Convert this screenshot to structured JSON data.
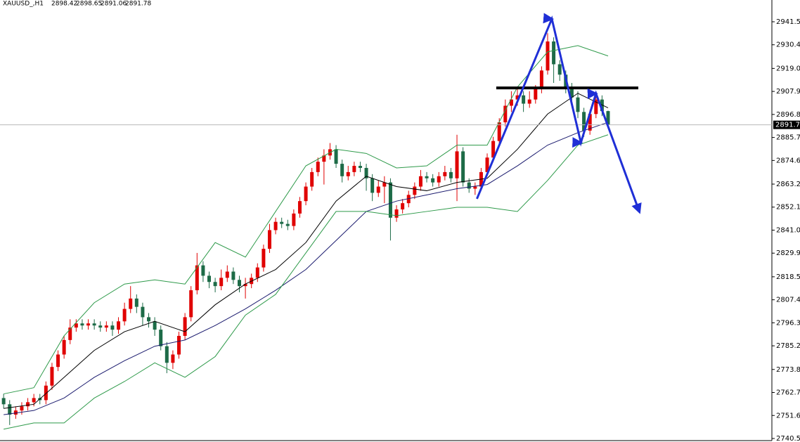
{
  "chart_data": {
    "type": "candlestick",
    "symbol": "XAUUSD_,H1",
    "ohlc": [
      2898.42,
      2898.65,
      2891.06,
      2891.78
    ],
    "last_price": 2891.78,
    "xlim": [
      -0.6,
      127.1
    ],
    "ylim": [
      2740.5,
      2952.0
    ],
    "yticks": [
      {
        "value": 2941.5,
        "label": "2941.50"
      },
      {
        "value": 2930.4,
        "label": "2930.40"
      },
      {
        "value": 2919.0,
        "label": "2919.00"
      },
      {
        "value": 2907.9,
        "label": "2907.90"
      },
      {
        "value": 2896.8,
        "label": "2896.80"
      },
      {
        "value": 2885.7,
        "label": "2885.70"
      },
      {
        "value": 2874.6,
        "label": "2874.60"
      },
      {
        "value": 2863.2,
        "label": "2863.20"
      },
      {
        "value": 2852.1,
        "label": "2852.10"
      },
      {
        "value": 2841.0,
        "label": "2841.00"
      },
      {
        "value": 2829.9,
        "label": "2829.90"
      },
      {
        "value": 2818.5,
        "label": "2818.50"
      },
      {
        "value": 2807.4,
        "label": "2807.40"
      },
      {
        "value": 2796.3,
        "label": "2796.30"
      },
      {
        "value": 2785.2,
        "label": "2785.20"
      },
      {
        "value": 2773.8,
        "label": "2773.80"
      },
      {
        "value": 2762.7,
        "label": "2762.70"
      },
      {
        "value": 2751.6,
        "label": "2751.60"
      },
      {
        "value": 2740.5,
        "label": "2740.50"
      }
    ],
    "up_color": "#e00000",
    "down_color": "#1d6b47",
    "open": [
      2760,
      2757,
      2752,
      2754,
      2756,
      2758,
      2760,
      2759,
      2766,
      2775,
      2781,
      2788,
      2794,
      2796,
      2795,
      2796,
      2795,
      2794,
      2795,
      2793,
      2797,
      2803,
      2808,
      2804,
      2799,
      2797,
      2793,
      2785,
      2777,
      2781,
      2790,
      2799,
      2812,
      2824,
      2819,
      2816,
      2814,
      2818,
      2821,
      2817,
      2814,
      2815,
      2818,
      2823,
      2832,
      2841,
      2845,
      2844,
      2843,
      2849,
      2855,
      2862,
      2869,
      2874,
      2877,
      2880,
      2873,
      2867,
      2869,
      2872,
      2871,
      2866,
      2859,
      2862,
      2864,
      2847,
      2851,
      2854,
      2858,
      2862,
      2867,
      2866,
      2864,
      2867,
      2869,
      2866,
      2879,
      2864,
      2861,
      2862,
      2869,
      2876,
      2884,
      2893,
      2901,
      2904,
      2906,
      2902,
      2904,
      2909,
      2918,
      2932,
      2921,
      2916,
      2910,
      2905,
      2898,
      2889,
      2897,
      2904,
      2898.42
    ],
    "high": [
      2762,
      2759,
      2756,
      2758,
      2760,
      2762,
      2762,
      2768,
      2777,
      2783,
      2790,
      2798,
      2798,
      2798,
      2798,
      2798,
      2797,
      2797,
      2797,
      2799,
      2806,
      2814,
      2810,
      2806,
      2801,
      2799,
      2795,
      2787,
      2783,
      2792,
      2801,
      2814,
      2830,
      2826,
      2821,
      2818,
      2822,
      2824,
      2823,
      2819,
      2818,
      2820,
      2825,
      2834,
      2844,
      2847,
      2847,
      2846,
      2851,
      2857,
      2864,
      2871,
      2876,
      2880,
      2883,
      2882,
      2875,
      2872,
      2874,
      2874,
      2873,
      2868,
      2865,
      2867,
      2866,
      2853,
      2856,
      2860,
      2864,
      2870,
      2869,
      2868,
      2869,
      2872,
      2871,
      2887,
      2881,
      2866,
      2864,
      2871,
      2878,
      2886,
      2895,
      2904,
      2908,
      2910,
      2908,
      2908,
      2911,
      2920,
      2936,
      2934,
      2923,
      2918,
      2912,
      2908,
      2900,
      2899,
      2906,
      2906,
      2898.65
    ],
    "low": [
      2755,
      2747,
      2750,
      2752,
      2754,
      2756,
      2757,
      2757,
      2764,
      2773,
      2779,
      2786,
      2792,
      2793,
      2793,
      2793,
      2792,
      2792,
      2790,
      2791,
      2795,
      2801,
      2801,
      2795,
      2794,
      2790,
      2783,
      2772,
      2774,
      2779,
      2788,
      2797,
      2810,
      2816,
      2813,
      2811,
      2812,
      2816,
      2815,
      2811,
      2808,
      2813,
      2816,
      2821,
      2830,
      2839,
      2842,
      2841,
      2841,
      2847,
      2853,
      2860,
      2867,
      2863,
      2875,
      2871,
      2864,
      2865,
      2867,
      2869,
      2860,
      2855,
      2857,
      2854,
      2836,
      2845,
      2849,
      2852,
      2856,
      2860,
      2864,
      2862,
      2862,
      2865,
      2864,
      2855,
      2862,
      2859,
      2858,
      2860,
      2867,
      2874,
      2882,
      2891,
      2898,
      2901,
      2898,
      2900,
      2902,
      2907,
      2916,
      2912,
      2913,
      2907,
      2902,
      2895,
      2886,
      2887,
      2895,
      2896,
      2891.06
    ],
    "close": [
      2757,
      2752,
      2754,
      2756,
      2758,
      2760,
      2759,
      2766,
      2775,
      2781,
      2788,
      2794,
      2796,
      2795,
      2796,
      2795,
      2794,
      2795,
      2793,
      2797,
      2803,
      2808,
      2804,
      2799,
      2797,
      2793,
      2785,
      2777,
      2781,
      2790,
      2799,
      2812,
      2824,
      2819,
      2816,
      2814,
      2818,
      2821,
      2817,
      2814,
      2815,
      2818,
      2823,
      2832,
      2841,
      2845,
      2844,
      2843,
      2849,
      2855,
      2862,
      2869,
      2874,
      2877,
      2880,
      2873,
      2867,
      2869,
      2872,
      2871,
      2866,
      2859,
      2862,
      2864,
      2847,
      2851,
      2854,
      2858,
      2862,
      2867,
      2866,
      2864,
      2867,
      2869,
      2866,
      2879,
      2864,
      2861,
      2862,
      2869,
      2876,
      2884,
      2893,
      2901,
      2904,
      2906,
      2902,
      2904,
      2909,
      2918,
      2932,
      2921,
      2916,
      2910,
      2905,
      2898,
      2889,
      2897,
      2904,
      2898.42,
      2891.78
    ],
    "overlays": [
      {
        "color": "#000000",
        "x": [
          0,
          5,
          10,
          15,
          20,
          25,
          30,
          35,
          40,
          45,
          50,
          55,
          60,
          65,
          70,
          75,
          80,
          85,
          90,
          95,
          100
        ],
        "values": [
          2755,
          2757,
          2770,
          2783,
          2792,
          2797,
          2792,
          2805,
          2815,
          2822,
          2835,
          2855,
          2867,
          2862,
          2860,
          2864,
          2866,
          2880,
          2897,
          2907,
          2900
        ]
      },
      {
        "color": "#1a1a6e",
        "x": [
          0,
          5,
          10,
          15,
          20,
          25,
          30,
          35,
          40,
          45,
          50,
          55,
          60,
          65,
          70,
          75,
          80,
          85,
          90,
          95,
          100
        ],
        "values": [
          2752,
          2754,
          2760,
          2770,
          2778,
          2785,
          2788,
          2795,
          2803,
          2812,
          2822,
          2836,
          2850,
          2855,
          2858,
          2861,
          2863,
          2872,
          2882,
          2888,
          2893
        ]
      },
      {
        "color": "#2e9a4a",
        "x": [
          0,
          5,
          10,
          15,
          20,
          25,
          30,
          35,
          40,
          45,
          50,
          55,
          60,
          65,
          70,
          75,
          80,
          85,
          90,
          95,
          100
        ],
        "values": [
          2762,
          2765,
          2790,
          2806,
          2815,
          2817,
          2815,
          2835,
          2828,
          2850,
          2872,
          2880,
          2878,
          2871,
          2872,
          2882,
          2882,
          2910,
          2927,
          2930,
          2925
        ]
      },
      {
        "color": "#2e9a4a",
        "x": [
          0,
          5,
          10,
          15,
          20,
          25,
          30,
          35,
          40,
          45,
          50,
          55,
          60,
          65,
          70,
          75,
          80,
          85,
          90,
          95,
          100
        ],
        "values": [
          2745,
          2748,
          2748,
          2760,
          2768,
          2777,
          2770,
          2780,
          2800,
          2810,
          2830,
          2850,
          2850,
          2848,
          2850,
          2852,
          2852,
          2850,
          2865,
          2882,
          2887
        ]
      }
    ],
    "level": {
      "color": "#000000",
      "x": [
        81.5,
        105
      ],
      "value": 2909.6
    },
    "trend": {
      "color": "#1f2fd6",
      "x": [
        78.3,
        90.7,
        95.5,
        98,
        105.2
      ],
      "values": [
        2856.1,
        2942.9,
        2883.2,
        2906.9,
        2849.7
      ]
    }
  }
}
